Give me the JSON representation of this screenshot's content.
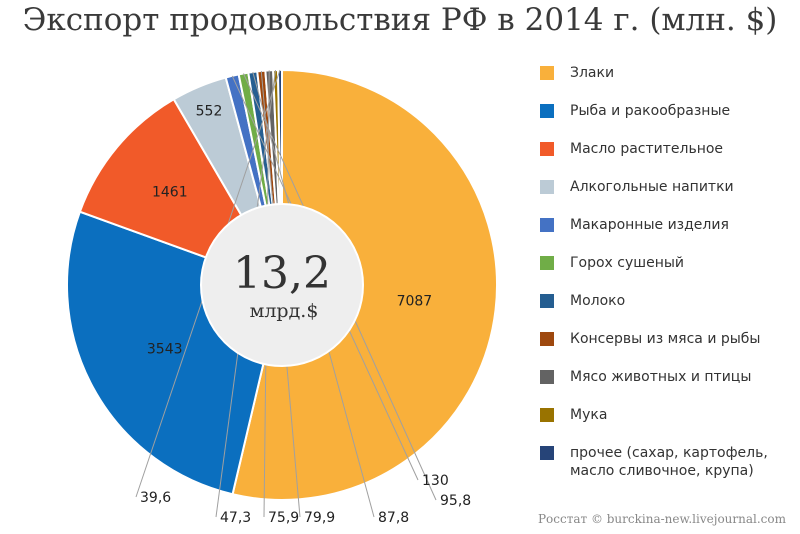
{
  "title": "Экспорт продовольствия РФ в 2014 г. (млн. $)",
  "center": {
    "value": "13,2",
    "unit": "млрд.$"
  },
  "source": "Росстат © burckina-new.livejournal.com",
  "chart_data": {
    "type": "pie",
    "donut": true,
    "legend_position": "right",
    "slices": [
      {
        "name": "Злаки",
        "value": 7087,
        "label": "7087",
        "color": "#F9B03B"
      },
      {
        "name": "Рыба и ракообразные",
        "value": 3543,
        "label": "3543",
        "color": "#0B6FBF"
      },
      {
        "name": "Масло растительное",
        "value": 1461,
        "label": "1461",
        "color": "#F15A29"
      },
      {
        "name": "Алкогольные напитки",
        "value": 552,
        "label": "552",
        "color": "#BCCBD6"
      },
      {
        "name": "Макаронные изделия",
        "value": 130,
        "label": "130",
        "color": "#4472C4"
      },
      {
        "name": "Горох сушеный",
        "value": 95.8,
        "label": "95,8",
        "color": "#70AD47"
      },
      {
        "name": "Молоко",
        "value": 87.8,
        "label": "87,8",
        "color": "#255E91"
      },
      {
        "name": "Консервы из мяса и рыбы",
        "value": 79.9,
        "label": "79,9",
        "color": "#9E480E"
      },
      {
        "name": "Мясо животных и птицы",
        "value": 75.9,
        "label": "75,9",
        "color": "#636363"
      },
      {
        "name": "Мука",
        "value": 47.3,
        "label": "47,3",
        "color": "#997300"
      },
      {
        "name": "прочее (сахар, картофель, масло сливочное, крупа)",
        "value": 39.6,
        "label": "39,6",
        "color": "#264478"
      }
    ]
  }
}
